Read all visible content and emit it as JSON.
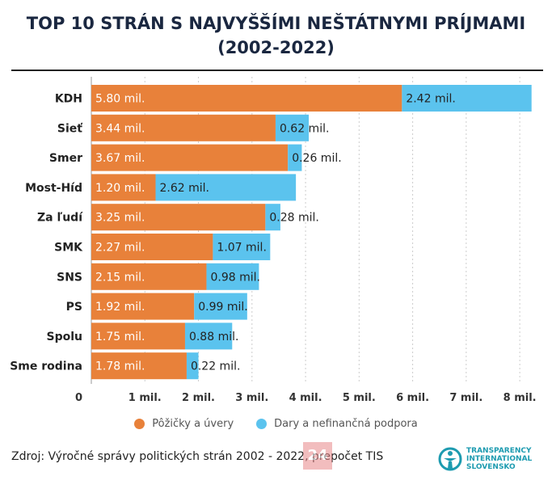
{
  "title_line1": "TOP 10 STRÁN S NAJVYŠŠÍMI NEŠTÁTNYMI PRÍJMAMI",
  "title_line2": "(2002-2022)",
  "chart_data": {
    "type": "bar",
    "orientation": "horizontal",
    "stacked": true,
    "categories": [
      "KDH",
      "Sieť",
      "Smer",
      "Most-Híd",
      "Za ľudí",
      "SMK",
      "SNS",
      "PS",
      "Spolu",
      "Sme rodina"
    ],
    "series": [
      {
        "name": "Pôžičky a úvery",
        "color": "#e8813a",
        "values": [
          5.8,
          3.44,
          3.67,
          1.2,
          3.25,
          2.27,
          2.15,
          1.92,
          1.75,
          1.78
        ],
        "labels": [
          "5.80 mil.",
          "3.44 mil.",
          "3.67 mil.",
          "1.20 mil.",
          "3.25 mil.",
          "2.27 mil.",
          "2.15 mil.",
          "1.92 mil.",
          "1.75 mil.",
          "1.78 mil."
        ]
      },
      {
        "name": "Dary a nefinančná podpora",
        "color": "#5bc3ee",
        "values": [
          2.42,
          0.62,
          0.26,
          2.62,
          0.28,
          1.07,
          0.98,
          0.99,
          0.88,
          0.22
        ],
        "labels": [
          "2.42 mil.",
          "0.62 mil.",
          "0.26 mil.",
          "2.62 mil.",
          "0.28 mil.",
          "1.07 mil.",
          "0.98 mil.",
          "0.99 mil.",
          "0.88 mil.",
          "0.22 mil."
        ]
      }
    ],
    "x_ticks": [
      0,
      1,
      2,
      3,
      4,
      5,
      6,
      7,
      8
    ],
    "x_tick_labels": [
      "0",
      "1 mil.",
      "2 mil.",
      "3 mil.",
      "4 mil.",
      "5 mil.",
      "6 mil.",
      "7 mil.",
      "8 mil."
    ],
    "xlim": [
      0,
      8.3
    ],
    "grid": true,
    "legend_position": "bottom"
  },
  "source_text": "Zdroj: Výročné správy politických strán 2002 - 2022, prepočet TIS",
  "logo24_text": "24",
  "ti_logo": {
    "line1": "TRANSPARENCY",
    "line2": "INTERNATIONAL",
    "line3": "SLOVENSKO"
  }
}
